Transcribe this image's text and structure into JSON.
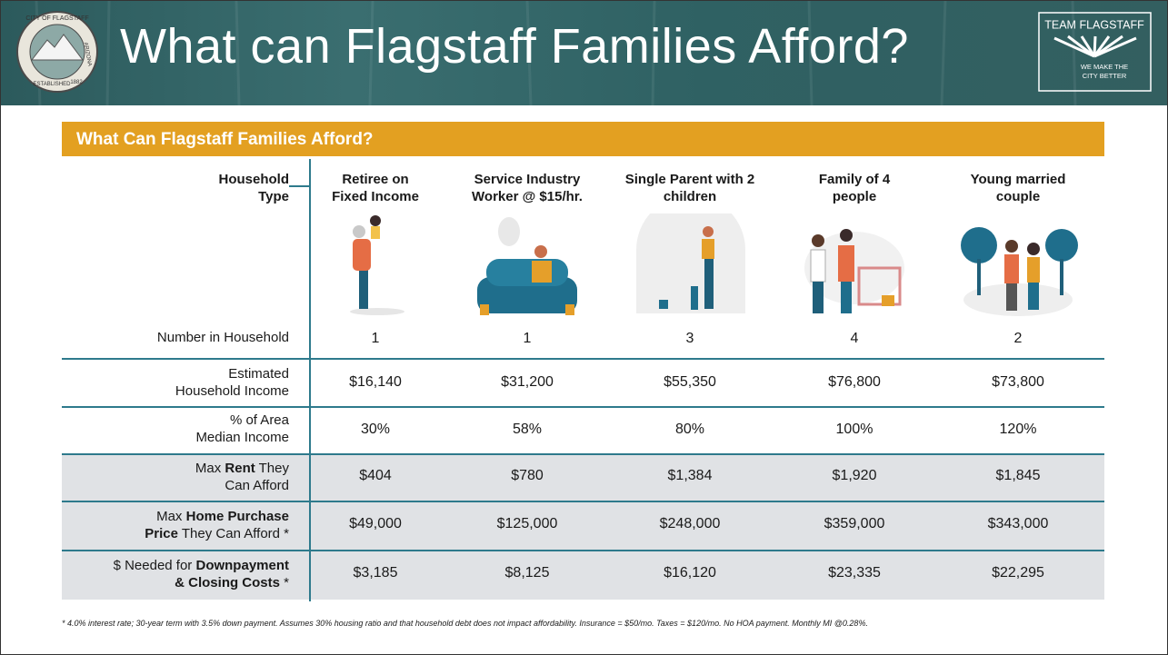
{
  "header": {
    "title": "What can Flagstaff Families Afford?",
    "seal": [
      "CITY OF FLAGSTAFF",
      "ARIZONA",
      "ESTABLISHED",
      "1882"
    ],
    "logo": [
      "TEAM FLAGSTAFF",
      "WE MAKE THE",
      "CITY BETTER"
    ]
  },
  "table": {
    "title": "What Can Flagstaff Families Afford?",
    "corner": [
      "Household",
      "Type"
    ],
    "columns": [
      [
        "Retiree on",
        "Fixed Income"
      ],
      [
        "Service Industry",
        "Worker @ $15/hr."
      ],
      [
        "Single Parent with 2",
        "children"
      ],
      [
        "Family of 4",
        "people"
      ],
      [
        "Young married",
        "couple"
      ]
    ],
    "rows": [
      {
        "label": [
          "Number in Household"
        ],
        "values": [
          "1",
          "1",
          "3",
          "4",
          "2"
        ]
      },
      {
        "label": [
          "Estimated",
          "Household Income"
        ],
        "values": [
          "$16,140",
          "$31,200",
          "$55,350",
          "$76,800",
          "$73,800"
        ]
      },
      {
        "label": [
          "% of Area",
          "Median Income"
        ],
        "values": [
          "30%",
          "58%",
          "80%",
          "100%",
          "120%"
        ]
      },
      {
        "label": [
          "Max",
          "Rent",
          "They",
          "Can Afford"
        ],
        "values": [
          "$404",
          "$780",
          "$1,384",
          "$1,920",
          "$1,845"
        ]
      },
      {
        "label": [
          "Max",
          "Home Purchase",
          "Price",
          "They Can Afford *"
        ],
        "values": [
          "$49,000",
          "$125,000",
          "$248,000",
          "$359,000",
          "$343,000"
        ]
      },
      {
        "label": [
          "$ Needed for",
          "Downpayment",
          "& Closing Costs",
          "*"
        ],
        "values": [
          "$3,185",
          "$8,125",
          "$16,120",
          "$23,335",
          "$22,295"
        ]
      }
    ]
  },
  "footnote": "* 4.0% interest rate; 30-year term with 3.5% down payment. Assumes 30% housing ratio and that household debt does not impact affordability. Insurance = $50/mo. Taxes = $120/mo. No HOA payment. Monthly MI @0.28%."
}
